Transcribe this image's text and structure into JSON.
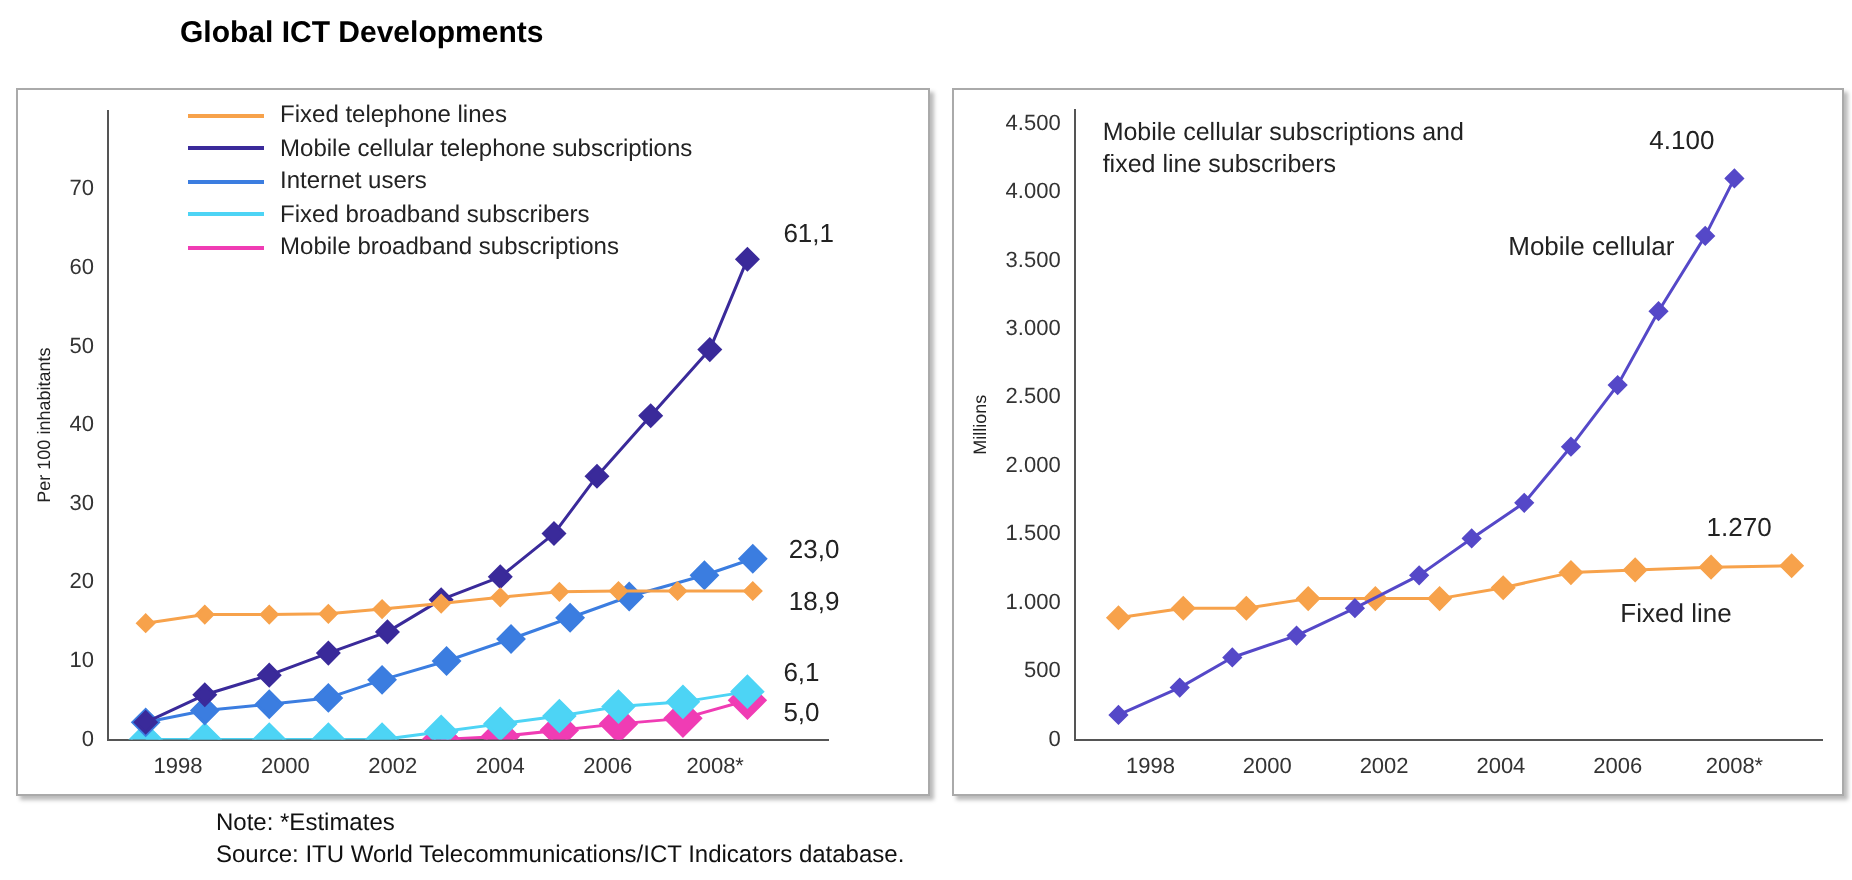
{
  "chart_data": [
    {
      "type": "line",
      "title": "Global ICT Developments",
      "ylabel": "Per 100 inhabitants",
      "xlim": [
        1996.7,
        2010.1
      ],
      "ylim": [
        0,
        80
      ],
      "xticks": [
        1998,
        2000,
        2002,
        2004,
        2006,
        {
          "value": 2008,
          "label": "2008*"
        }
      ],
      "yticks": [
        0,
        10,
        20,
        30,
        40,
        50,
        60,
        70
      ],
      "grid": false,
      "legend": "top",
      "marker": "diamond",
      "line_style": "solid",
      "annotations": [
        "Note: *Estimates",
        "Source: ITU World Telecommunications/ICT Indicators database."
      ],
      "series": [
        {
          "name": "Fixed telephone lines",
          "color": "#f7a24b",
          "x": [
            1997.4,
            1998.5,
            1999.7,
            2000.8,
            2001.8,
            2002.9,
            2004.0,
            2005.1,
            2006.2,
            2007.3,
            2008.7
          ],
          "values": [
            14.8,
            15.9,
            15.9,
            16.0,
            16.6,
            17.3,
            18.1,
            18.8,
            18.9,
            18.9,
            18.9
          ],
          "value_labels": [
            null,
            null,
            null,
            null,
            null,
            null,
            null,
            null,
            null,
            null,
            "18,9"
          ]
        },
        {
          "name": "Mobile cellular telephone subscriptions",
          "color": "#3a2a9a",
          "x": [
            1997.4,
            1998.5,
            1999.7,
            2000.8,
            2001.9,
            2002.9,
            2004.0,
            2005.0,
            2005.8,
            2006.8,
            2007.9,
            2008.6
          ],
          "values": [
            2.2,
            5.7,
            8.2,
            11.0,
            13.7,
            17.8,
            20.7,
            26.2,
            33.5,
            41.2,
            49.6,
            61.1
          ],
          "value_labels": [
            null,
            null,
            null,
            null,
            null,
            null,
            null,
            null,
            null,
            null,
            null,
            "61,1"
          ]
        },
        {
          "name": "Internet users",
          "color": "#3b7de0",
          "x": [
            1997.4,
            1998.5,
            1999.7,
            2000.8,
            2001.8,
            2003.0,
            2004.2,
            2005.3,
            2006.4,
            2007.8,
            2008.7
          ],
          "values": [
            2.2,
            3.7,
            4.5,
            5.3,
            7.6,
            10.0,
            12.8,
            15.5,
            18.2,
            20.9,
            23.0
          ],
          "value_labels": [
            null,
            null,
            null,
            null,
            null,
            null,
            null,
            null,
            null,
            null,
            "23,0"
          ]
        },
        {
          "name": "Fixed broadband subscribers",
          "color": "#4dd4f5",
          "x": [
            1997.4,
            1998.5,
            1999.7,
            2000.8,
            2001.8,
            2002.9,
            2004.0,
            2005.1,
            2006.2,
            2007.4,
            2008.6
          ],
          "values": [
            0,
            0,
            0,
            0,
            0,
            1.0,
            2.0,
            3.0,
            4.2,
            4.8,
            6.1
          ],
          "value_labels": [
            null,
            null,
            null,
            null,
            null,
            null,
            null,
            null,
            null,
            null,
            "6,1"
          ]
        },
        {
          "name": "Mobile broadband subscriptions",
          "color": "#f03cb4",
          "x": [
            2002.9,
            2004.0,
            2005.1,
            2006.2,
            2007.4,
            2008.6
          ],
          "values": [
            0,
            0.4,
            1.2,
            2.0,
            2.7,
            5.0
          ],
          "value_labels": [
            null,
            null,
            null,
            null,
            null,
            "5,0"
          ]
        }
      ]
    },
    {
      "type": "line",
      "ylabel": "Millions",
      "xlim": [
        1996.7,
        2009.5
      ],
      "ylim": [
        0,
        4600
      ],
      "xticks": [
        1998,
        2000,
        2002,
        2004,
        2006,
        {
          "value": 2008,
          "label": "2008*"
        }
      ],
      "yticks": [
        0,
        500,
        {
          "value": 1000,
          "label": "1.000"
        },
        {
          "value": 1500,
          "label": "1.500"
        },
        {
          "value": 2000,
          "label": "2.000"
        },
        {
          "value": 2500,
          "label": "2.500"
        },
        {
          "value": 3000,
          "label": "3.000"
        },
        {
          "value": 3500,
          "label": "3.500"
        },
        {
          "value": 4000,
          "label": "4.000"
        },
        {
          "value": 4500,
          "label": "4.500"
        }
      ],
      "grid": false,
      "marker": "diamond",
      "line_style": "solid",
      "annotations": [
        "Mobile cellular subscriptions and fixed line subscribers"
      ],
      "series": [
        {
          "name": "Mobile cellular",
          "color": "#5548c8",
          "x": [
            1997.45,
            1998.5,
            1999.4,
            2000.5,
            2001.5,
            2002.6,
            2003.5,
            2004.4,
            2005.2,
            2006.0,
            2006.7,
            2007.5,
            2008.0
          ],
          "values": [
            180,
            380,
            600,
            760,
            960,
            1200,
            1470,
            1730,
            2140,
            2590,
            3130,
            3680,
            4100
          ],
          "value_labels": [
            null,
            null,
            null,
            null,
            null,
            null,
            null,
            null,
            null,
            null,
            null,
            null,
            "4.100"
          ]
        },
        {
          "name": "Fixed line",
          "color": "#f7a24b",
          "x": [
            1997.45,
            1998.56,
            1999.64,
            2000.7,
            2001.85,
            2002.95,
            2004.04,
            2005.2,
            2006.3,
            2007.6,
            2008.98
          ],
          "values": [
            890,
            960,
            960,
            1030,
            1030,
            1030,
            1110,
            1220,
            1240,
            1260,
            1270
          ],
          "value_labels": [
            null,
            null,
            null,
            null,
            null,
            null,
            null,
            null,
            null,
            null,
            "1.270"
          ]
        }
      ]
    }
  ]
}
